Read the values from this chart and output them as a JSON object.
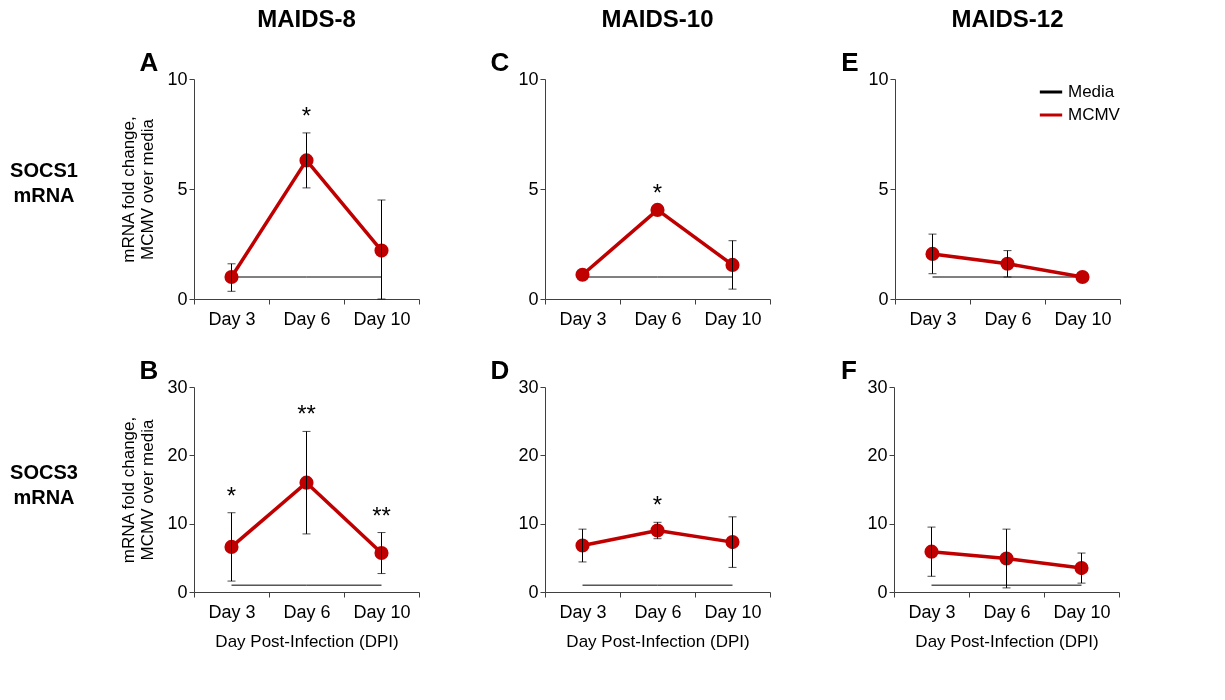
{
  "chart_data": [
    {
      "type": "line",
      "title": "MAIDS-8",
      "ylabel": "mRNA fold change,\nMCMV over media",
      "categories": [
        "Day 3",
        "Day 6",
        "Day 10"
      ],
      "ylim": [
        0,
        10
      ],
      "yticks": [
        0,
        5,
        10
      ],
      "annotations": [
        "A",
        "SOCS1\nmRNA",
        {
          "text": "*",
          "x": "Day 6",
          "y": 6.3
        }
      ],
      "series": [
        {
          "color": "#000000",
          "marker": "none",
          "values": [
            1,
            1,
            1
          ]
        },
        {
          "color": "#c00000",
          "marker": "circle",
          "values": [
            1.0,
            6.3,
            2.2
          ],
          "errors": [
            [
              0.35,
              1.6
            ],
            [
              5.05,
              7.55
            ],
            [
              0,
              4.5
            ]
          ]
        }
      ]
    },
    {
      "type": "line",
      "title": "MAIDS-10",
      "categories": [
        "Day 3",
        "Day 6",
        "Day 10"
      ],
      "ylim": [
        0,
        10
      ],
      "yticks": [
        0,
        5,
        10
      ],
      "annotations": [
        "C",
        null,
        {
          "text": "*",
          "x": "Day 6",
          "y": 4.05
        }
      ],
      "series": [
        {
          "color": "#000000",
          "marker": "none",
          "values": [
            1,
            1,
            1
          ]
        },
        {
          "color": "#c00000",
          "marker": "circle",
          "values": [
            1.1,
            4.05,
            1.55
          ],
          "errors": [
            null,
            null,
            [
              0.45,
              2.65
            ]
          ]
        }
      ]
    },
    {
      "type": "line",
      "title": "MAIDS-12",
      "categories": [
        "Day 3",
        "Day 6",
        "Day 10"
      ],
      "ylim": [
        0,
        10
      ],
      "yticks": [
        0,
        5,
        10
      ],
      "legend": "top right",
      "annotations": [
        "E"
      ],
      "series": [
        {
          "name": "Media",
          "color": "#000000",
          "marker": "none",
          "values": [
            1,
            1,
            1
          ]
        },
        {
          "name": "MCMV",
          "color": "#c00000",
          "marker": "circle",
          "values": [
            2.05,
            1.6,
            1.0
          ],
          "errors": [
            [
              1.15,
              2.95
            ],
            [
              1.0,
              2.2
            ],
            null
          ]
        }
      ]
    },
    {
      "type": "line",
      "ylabel": "mRNA fold change,\nMCMV over media",
      "xlabel": "Day Post-Infection (DPI)",
      "categories": [
        "Day 3",
        "Day 6",
        "Day 10"
      ],
      "ylim": [
        0,
        30
      ],
      "yticks": [
        0,
        10,
        20,
        30
      ],
      "annotations": [
        "B",
        "SOCS3\nmRNA",
        {
          "text": "*",
          "x": "Day 3",
          "y": 6.6
        },
        {
          "text": "**",
          "x": "Day 6",
          "y": 16
        },
        {
          "text": "**",
          "x": "Day 10",
          "y": 5.7
        }
      ],
      "series": [
        {
          "color": "#000000",
          "marker": "none",
          "values": [
            1,
            1,
            1
          ]
        },
        {
          "color": "#c00000",
          "marker": "circle",
          "values": [
            6.6,
            16,
            5.7
          ],
          "errors": [
            [
              1.6,
              11.6
            ],
            [
              8.5,
              23.5
            ],
            [
              2.7,
              8.7
            ]
          ]
        }
      ]
    },
    {
      "type": "line",
      "xlabel": "Day Post-Infection (DPI)",
      "categories": [
        "Day 3",
        "Day 6",
        "Day 10"
      ],
      "ylim": [
        0,
        30
      ],
      "yticks": [
        0,
        10,
        20,
        30
      ],
      "annotations": [
        "D",
        null,
        {
          "text": "*",
          "x": "Day 6",
          "y": 9.0
        }
      ],
      "series": [
        {
          "color": "#000000",
          "marker": "none",
          "values": [
            1,
            1,
            1
          ]
        },
        {
          "color": "#c00000",
          "marker": "circle",
          "values": [
            6.8,
            9.0,
            7.3
          ],
          "errors": [
            [
              4.4,
              9.2
            ],
            [
              7.8,
              10.2
            ],
            [
              3.6,
              11.0
            ]
          ]
        }
      ]
    },
    {
      "type": "line",
      "xlabel": "Day Post-Infection (DPI)",
      "categories": [
        "Day 3",
        "Day 6",
        "Day 10"
      ],
      "ylim": [
        0,
        30
      ],
      "yticks": [
        0,
        10,
        20,
        30
      ],
      "annotations": [
        "F"
      ],
      "series": [
        {
          "color": "#000000",
          "marker": "none",
          "values": [
            1,
            1,
            1
          ]
        },
        {
          "color": "#c00000",
          "marker": "circle",
          "values": [
            5.9,
            4.9,
            3.5
          ],
          "errors": [
            [
              2.3,
              9.5
            ],
            [
              0.6,
              9.2
            ],
            [
              1.3,
              5.7
            ]
          ]
        }
      ]
    }
  ]
}
